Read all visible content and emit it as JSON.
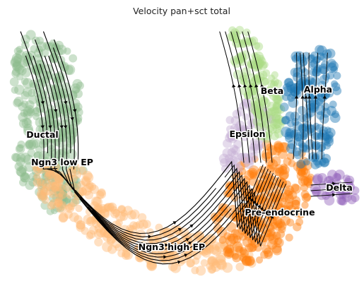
{
  "chart_data": {
    "type": "scatter",
    "title": "Velocity pan+sct total",
    "xlabel": "",
    "ylabel": "",
    "grid": false,
    "legend": "on data",
    "axes_visible": false,
    "overlay": "velocity stream arrows",
    "clusters": [
      {
        "name": "Ductal",
        "color": "#8fbc8f"
      },
      {
        "name": "Ngn3 low EP",
        "color": "#8fbc8f"
      },
      {
        "name": "Ngn3 high EP",
        "color": "#ffbb78"
      },
      {
        "name": "Pre-endocrine",
        "color": "#ff7f0e"
      },
      {
        "name": "Epsilon",
        "color": "#c5b0d5"
      },
      {
        "name": "Beta",
        "color": "#aadb84"
      },
      {
        "name": "Alpha",
        "color": "#1f77b4"
      },
      {
        "name": "Delta",
        "color": "#9467bd"
      }
    ]
  }
}
